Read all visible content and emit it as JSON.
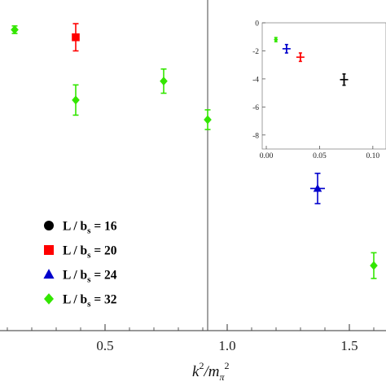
{
  "chart_data": [
    {
      "type": "scatter",
      "xlabel_main": "k",
      "xlabel_sup1": "2",
      "xlabel_sep": "/m",
      "xlabel_sub": "π",
      "xlabel_sup2": "2",
      "ylabel": "",
      "xlim": [
        0.0,
        1.85
      ],
      "ylim": [
        -3.0,
        1.4
      ],
      "x_ticks": [
        {
          "value": 0.5,
          "label": "0.5"
        },
        {
          "value": 1.0,
          "label": "1.0"
        },
        {
          "value": 1.5,
          "label": "1.5"
        }
      ],
      "legend": {
        "placement": "lower-left",
        "entries": [
          {
            "label": "L / b",
            "sub": "s",
            "rest": " = 16",
            "marker": "circle",
            "color": "#000000"
          },
          {
            "label": "L / b",
            "sub": "s",
            "rest": " = 20",
            "marker": "square",
            "color": "#ff0000"
          },
          {
            "label": "L / b",
            "sub": "s",
            "rest": " = 24",
            "marker": "triangle",
            "color": "#0000cc"
          },
          {
            "label": "L / b",
            "sub": "s",
            "rest": " = 32",
            "marker": "diamond",
            "color": "#33e600"
          }
        ]
      },
      "series": [
        {
          "marker": "square",
          "color": "#ff0000",
          "points": [
            {
              "x": 0.38,
              "y": 0.88,
              "err": 0.18
            }
          ]
        },
        {
          "marker": "triangle",
          "color": "#0000cc",
          "points": [
            {
              "x": 1.37,
              "y": -1.12,
              "err": 0.2,
              "xerr": 0.03
            }
          ]
        },
        {
          "marker": "diamond",
          "color": "#33e600",
          "points": [
            {
              "x": 0.13,
              "y": 0.98,
              "err": 0.05
            },
            {
              "x": 0.38,
              "y": 0.05,
              "err": 0.2
            },
            {
              "x": 0.74,
              "y": 0.3,
              "err": 0.16
            },
            {
              "x": 0.92,
              "y": -0.21,
              "err": 0.13
            },
            {
              "x": 1.6,
              "y": -2.14,
              "err": 0.17
            }
          ]
        }
      ]
    },
    {
      "type": "scatter",
      "placement": "inset-top-right",
      "xlim": [
        0.0,
        0.12
      ],
      "ylim": [
        -9.0,
        0.0
      ],
      "x_ticks": [
        {
          "value": 0.0,
          "label": "0.00"
        },
        {
          "value": 0.05,
          "label": "0.05"
        },
        {
          "value": 0.1,
          "label": "0.10"
        }
      ],
      "y_ticks": [
        {
          "value": 0,
          "label": "0"
        },
        {
          "value": -2,
          "label": "-2"
        },
        {
          "value": -4,
          "label": "-4"
        },
        {
          "value": -6,
          "label": "-6"
        },
        {
          "value": -8,
          "label": "-8"
        }
      ],
      "series": [
        {
          "marker": "diamond",
          "color": "#33e600",
          "points": [
            {
              "x": 0.009,
              "y": -1.2,
              "err": 0.15
            }
          ]
        },
        {
          "marker": "cross",
          "color": "#0000cc",
          "points": [
            {
              "x": 0.019,
              "y": -1.85,
              "err": 0.3
            }
          ]
        },
        {
          "marker": "cross",
          "color": "#ff0000",
          "points": [
            {
              "x": 0.032,
              "y": -2.45,
              "err": 0.3
            }
          ]
        },
        {
          "marker": "cross",
          "color": "#000000",
          "points": [
            {
              "x": 0.073,
              "y": -4.05,
              "err": 0.4
            }
          ]
        }
      ]
    }
  ]
}
